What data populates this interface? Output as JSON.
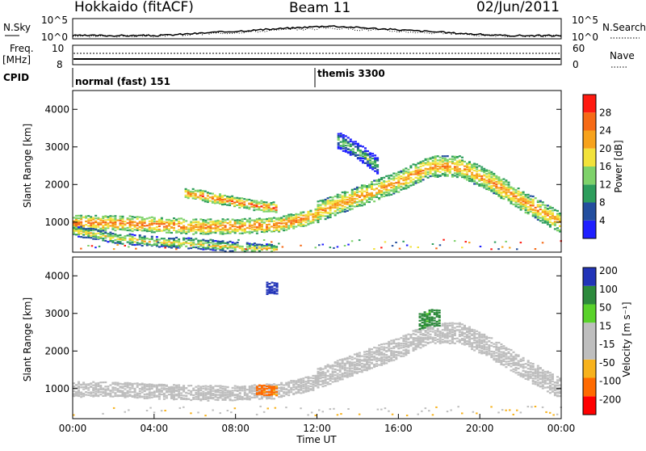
{
  "header": {
    "radar": "Hokkaido (fitACF)",
    "beam": "Beam 11",
    "date": "02/Jun/2011"
  },
  "strip": {
    "left_top_label": "N.Sky",
    "left_top_ticks": [
      "10^5",
      "10^0"
    ],
    "right_top_label": "N.Search",
    "right_top_ticks": [
      "10^5",
      "10^0"
    ],
    "freq_label": "Freq.",
    "freq_unit": "[MHz]",
    "freq_ticks": [
      "10",
      "8"
    ],
    "nave_label": "Nave",
    "nave_ticks": [
      "60",
      "0"
    ],
    "cpid_label": "CPID",
    "cpid_segments": [
      "normal (fast) 151",
      "themis 3300"
    ]
  },
  "colors": {
    "power": [
      "#1f1fff",
      "#234e9e",
      "#2d9d5c",
      "#7ed26a",
      "#f2e23a",
      "#f7a21c",
      "#f66a16",
      "#ff1a10"
    ],
    "velocity": [
      "#ff0000",
      "#ff6a00",
      "#f7b21c",
      "#bebebe",
      "#bebebe",
      "#59d22a",
      "#2d8a3c",
      "#2234b8"
    ]
  },
  "chart_data": [
    {
      "type": "heatmap",
      "title": "Power",
      "ylabel": "Slant Range [km]",
      "xlabel": "",
      "ylim": [
        200,
        4500
      ],
      "xlim": [
        "00:00",
        "24:00"
      ],
      "yticks": [
        "1000",
        "2000",
        "3000",
        "4000"
      ],
      "colorbar": {
        "label": "Power [dB]",
        "ticks": [
          "4",
          "8",
          "12",
          "16",
          "20",
          "24",
          "28"
        ]
      },
      "bands": [
        {
          "t": [
            0,
            2,
            4,
            6,
            8,
            10,
            12
          ],
          "r": [
            1000,
            1000,
            950,
            900,
            900,
            950,
            1200
          ],
          "w": 180,
          "dB": 26
        },
        {
          "t": [
            0,
            1,
            2,
            4,
            6,
            8,
            10
          ],
          "r": [
            800,
            700,
            600,
            500,
            450,
            350,
            300
          ],
          "w": 120,
          "dB": 20
        },
        {
          "t": [
            12,
            14,
            16,
            17.5,
            19,
            20.5,
            22,
            24
          ],
          "r": [
            1300,
            1700,
            2100,
            2500,
            2500,
            2100,
            1600,
            1000
          ],
          "w": 260,
          "dB": 24
        },
        {
          "t": [
            5.5,
            7,
            8.5,
            10
          ],
          "r": [
            1800,
            1650,
            1500,
            1400
          ],
          "w": 120,
          "dB": 26
        },
        {
          "t": [
            13,
            14,
            15
          ],
          "r": [
            3200,
            2900,
            2500
          ],
          "w": 200,
          "dB": 14
        }
      ]
    },
    {
      "type": "heatmap",
      "title": "Velocity",
      "ylabel": "Slant Range [km]",
      "xlabel": "Time UT",
      "ylim": [
        200,
        4500
      ],
      "xlim": [
        "00:00",
        "24:00"
      ],
      "yticks": [
        "1000",
        "2000",
        "3000",
        "4000"
      ],
      "xticks": [
        "00:00",
        "04:00",
        "08:00",
        "12:00",
        "16:00",
        "20:00",
        "00:00"
      ],
      "colorbar": {
        "label": "Velocity [m s⁻¹]",
        "ticks": [
          "200",
          "100",
          "50",
          "15",
          "-15",
          "-50",
          "-100",
          "-200"
        ]
      },
      "bands": [
        {
          "t": [
            0,
            2,
            4,
            6,
            8,
            10,
            12
          ],
          "r": [
            1000,
            1000,
            950,
            900,
            900,
            950,
            1200
          ],
          "w": 180,
          "v": 0
        },
        {
          "t": [
            12,
            14,
            16,
            17.5,
            19,
            20.5,
            22,
            24
          ],
          "r": [
            1300,
            1700,
            2100,
            2500,
            2500,
            2100,
            1600,
            1000
          ],
          "w": 260,
          "v": 0
        },
        {
          "t": [
            17,
            17.5,
            18
          ],
          "r": [
            2800,
            2900,
            2900
          ],
          "w": 200,
          "v": 60
        },
        {
          "t": [
            9.5,
            10
          ],
          "r": [
            3700,
            3700
          ],
          "w": 150,
          "v": 220
        },
        {
          "t": [
            9,
            10
          ],
          "r": [
            1000,
            950
          ],
          "w": 120,
          "v": -60
        }
      ]
    }
  ]
}
